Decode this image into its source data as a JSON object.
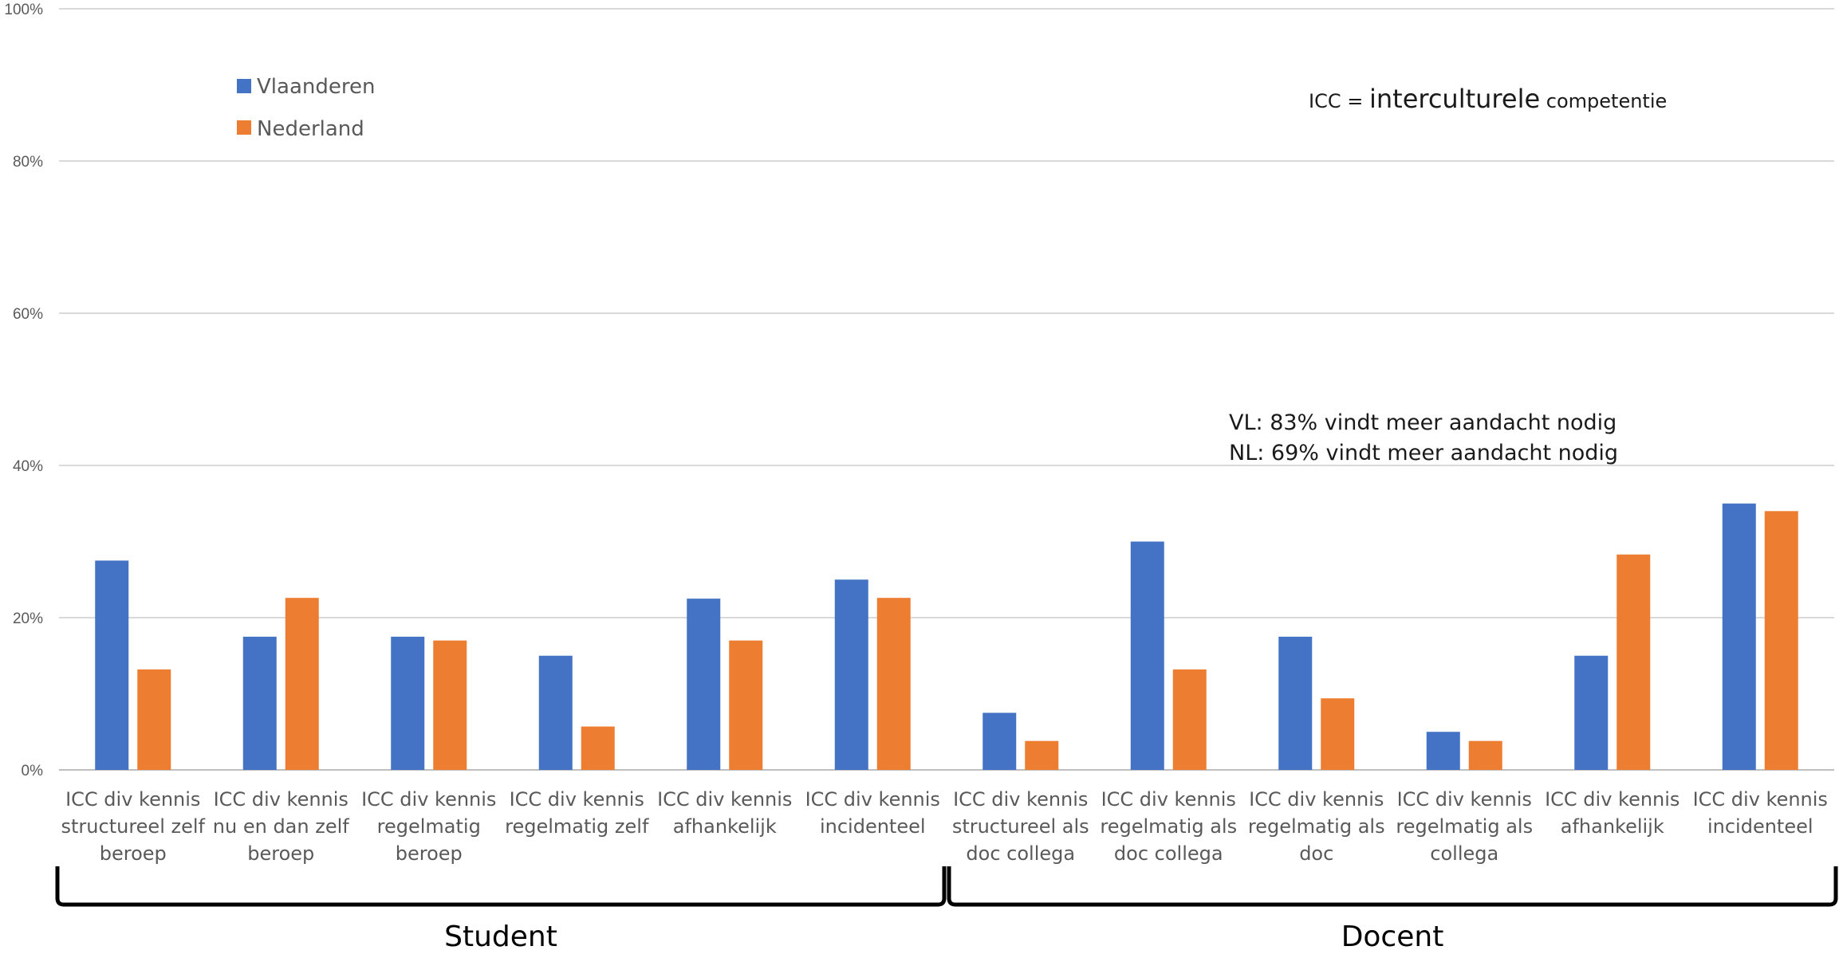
{
  "chart_data": {
    "type": "bar",
    "ylim": [
      0,
      100
    ],
    "yticks": [
      "0%",
      "20%",
      "40%",
      "60%",
      "80%",
      "100%"
    ],
    "grid": true,
    "legend_position": "top-left",
    "categories": [
      [
        "ICC div kennis",
        "structureel zelf",
        "beroep"
      ],
      [
        "ICC div kennis",
        "nu en dan zelf",
        "beroep"
      ],
      [
        "ICC div kennis",
        "regelmatig",
        "beroep"
      ],
      [
        "ICC div kennis",
        "regelmatig zelf"
      ],
      [
        "ICC div kennis",
        "afhankelijk"
      ],
      [
        "ICC div kennis",
        "incidenteel"
      ],
      [
        "ICC div kennis",
        "structureel als",
        "doc collega"
      ],
      [
        "ICC div kennis",
        "regelmatig als",
        "doc collega"
      ],
      [
        "ICC div kennis",
        "regelmatig als",
        "doc"
      ],
      [
        "ICC div kennis",
        "regelmatig als",
        "collega"
      ],
      [
        "ICC div kennis",
        "afhankelijk"
      ],
      [
        "ICC div kennis",
        "incidenteel"
      ]
    ],
    "series": [
      {
        "name": "Vlaanderen",
        "color": "#4472c4",
        "values": [
          27.5,
          17.5,
          17.5,
          15,
          22.5,
          25,
          7.5,
          30,
          17.5,
          5,
          15,
          35
        ]
      },
      {
        "name": "Nederland",
        "color": "#ed7d31",
        "values": [
          13.2,
          22.6,
          17,
          5.7,
          17,
          22.6,
          3.8,
          13.2,
          9.4,
          3.8,
          28.3,
          34
        ]
      }
    ],
    "groups": [
      {
        "label": "Student",
        "from": 0,
        "to": 5
      },
      {
        "label": "Docent",
        "from": 6,
        "to": 11
      }
    ],
    "annotations": {
      "icc_prefix": "ICC = ",
      "icc_main": "interculturele",
      "icc_suffix": " competentie",
      "vl_note": "VL: 83% vindt meer aandacht nodig",
      "nl_note": "NL: 69% vindt meer aandacht nodig"
    }
  }
}
